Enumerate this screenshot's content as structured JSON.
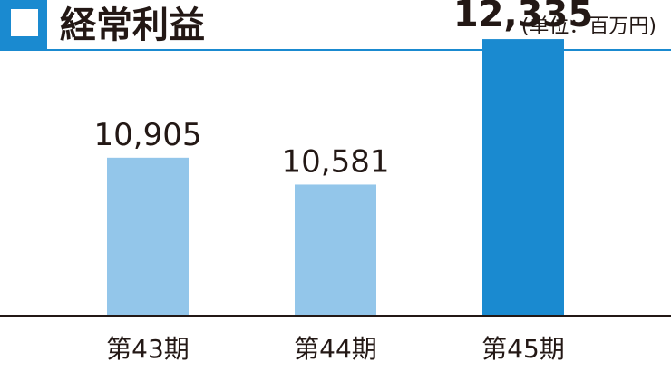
{
  "colors": {
    "accent": "#1a8ad0",
    "bar_light": "#93c6ea",
    "bar_highlight": "#1a8ad0",
    "axis": "#231815",
    "text": "#231815"
  },
  "header": {
    "title": "経常利益",
    "unit": "(単位：百万円)"
  },
  "chart_data": {
    "type": "bar",
    "title": "経常利益",
    "unit": "(単位：百万円)",
    "categories": [
      "第43期",
      "第44期",
      "第45期"
    ],
    "values": [
      10905,
      10581,
      12335
    ],
    "value_labels": [
      "10,905",
      "10,581",
      "12,335"
    ],
    "highlight_index": 2,
    "ylim": [
      9000,
      12500
    ],
    "grid": false,
    "legend": "none"
  }
}
